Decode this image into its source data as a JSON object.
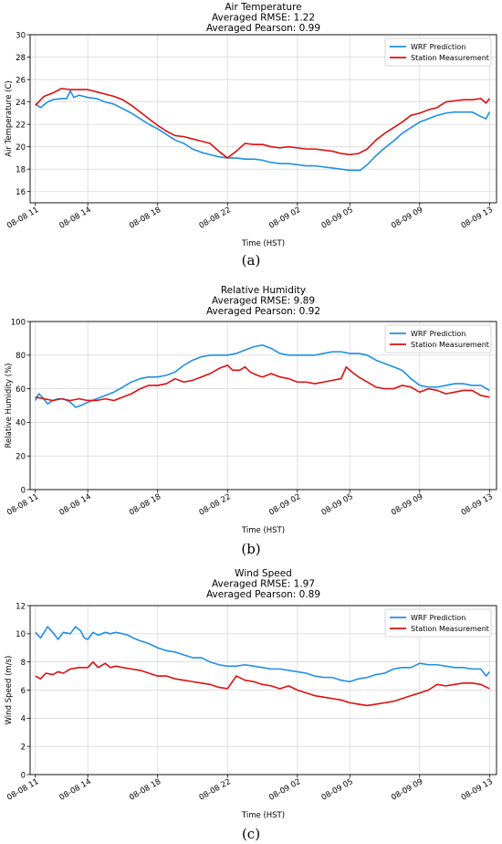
{
  "chart_data": [
    {
      "type": "line",
      "panel_label": "(a)",
      "title": [
        "Air Temperature",
        "Averaged RMSE: 1.22",
        "Averaged Pearson: 0.99"
      ],
      "xlabel": "Time (HST)",
      "ylabel": "Air Temperature (C)",
      "ylim": [
        15,
        30
      ],
      "yticks": [
        16,
        18,
        20,
        22,
        24,
        26,
        28,
        30
      ],
      "xlim": [
        -0.3,
        26.4
      ],
      "xticks": [
        0,
        3,
        7,
        11,
        15,
        18,
        22,
        26
      ],
      "xticklabels": [
        "08-08 11",
        "08-08 14",
        "08-08 18",
        "08-08 22",
        "08-09 02",
        "08-09 05",
        "08-09 09",
        "08-09 13"
      ],
      "grid": true,
      "legend": "top-right",
      "series": [
        {
          "name": "WRF Prediction",
          "color": "#1f8fe5",
          "x": [
            0,
            0.3,
            0.7,
            1.0,
            1.5,
            1.8,
            2.0,
            2.2,
            2.5,
            3.0,
            3.5,
            4.0,
            4.5,
            5.0,
            5.5,
            6.0,
            6.5,
            7.0,
            7.5,
            8.0,
            8.5,
            9.0,
            9.5,
            10.0,
            10.5,
            11.0,
            11.5,
            12.0,
            12.5,
            13.0,
            13.5,
            14.0,
            14.5,
            15.0,
            15.5,
            16.0,
            16.5,
            17.0,
            17.5,
            18.0,
            18.3,
            18.6,
            19.0,
            19.5,
            20.0,
            20.5,
            21.0,
            21.5,
            22.0,
            22.5,
            23.0,
            23.5,
            24.0,
            24.5,
            25.0,
            25.5,
            25.8,
            26.0
          ],
          "y": [
            23.8,
            23.5,
            24.0,
            24.2,
            24.3,
            24.3,
            25.0,
            24.4,
            24.6,
            24.4,
            24.3,
            24.0,
            23.8,
            23.4,
            23.0,
            22.5,
            22.0,
            21.6,
            21.1,
            20.6,
            20.3,
            19.8,
            19.5,
            19.3,
            19.1,
            19.0,
            19.0,
            18.9,
            18.9,
            18.8,
            18.6,
            18.5,
            18.5,
            18.4,
            18.3,
            18.3,
            18.2,
            18.1,
            18.0,
            17.9,
            17.9,
            17.9,
            18.4,
            19.2,
            19.9,
            20.5,
            21.2,
            21.7,
            22.2,
            22.5,
            22.8,
            23.0,
            23.1,
            23.1,
            23.1,
            22.7,
            22.5,
            23.1
          ]
        },
        {
          "name": "Station Measurement",
          "color": "#dd0f0f",
          "x": [
            0,
            0.5,
            1.0,
            1.5,
            2.0,
            2.5,
            3.0,
            3.5,
            4.0,
            4.5,
            5.0,
            5.5,
            6.0,
            6.5,
            7.0,
            7.5,
            8.0,
            8.5,
            9.0,
            9.5,
            10.0,
            10.5,
            11.0,
            11.5,
            12.0,
            12.5,
            13.0,
            13.5,
            14.0,
            14.5,
            15.0,
            15.5,
            16.0,
            16.5,
            17.0,
            17.5,
            18.0,
            18.5,
            19.0,
            19.5,
            20.0,
            20.5,
            21.0,
            21.5,
            22.0,
            22.5,
            23.0,
            23.5,
            24.0,
            24.5,
            25.0,
            25.5,
            25.8,
            26.0
          ],
          "y": [
            23.7,
            24.5,
            24.8,
            25.2,
            25.1,
            25.1,
            25.1,
            24.9,
            24.7,
            24.5,
            24.2,
            23.7,
            23.1,
            22.5,
            21.9,
            21.4,
            21.0,
            20.9,
            20.7,
            20.5,
            20.3,
            19.6,
            19.0,
            19.6,
            20.3,
            20.2,
            20.2,
            20.0,
            19.9,
            20.0,
            19.9,
            19.8,
            19.8,
            19.7,
            19.6,
            19.4,
            19.3,
            19.4,
            19.8,
            20.6,
            21.2,
            21.7,
            22.2,
            22.8,
            23.0,
            23.3,
            23.5,
            24.0,
            24.1,
            24.2,
            24.2,
            24.3,
            23.9,
            24.3
          ]
        }
      ]
    },
    {
      "type": "line",
      "panel_label": "(b)",
      "title": [
        "Relative Humidity",
        "Averaged RMSE: 9.89",
        "Averaged Pearson: 0.92"
      ],
      "xlabel": "Time (HST)",
      "ylabel": "Relative Humidity (%)",
      "ylim": [
        0,
        100
      ],
      "yticks": [
        0,
        20,
        40,
        60,
        80,
        100
      ],
      "xlim": [
        -0.3,
        26.4
      ],
      "xticks": [
        0,
        3,
        7,
        11,
        15,
        18,
        22,
        26
      ],
      "xticklabels": [
        "08-08 11",
        "08-08 14",
        "08-08 18",
        "08-08 22",
        "08-09 02",
        "08-09 05",
        "08-09 09",
        "08-09 13"
      ],
      "grid": true,
      "legend": "top-right",
      "series": [
        {
          "name": "WRF Prediction",
          "color": "#1f8fe5",
          "x": [
            0,
            0.2,
            0.4,
            0.7,
            1.0,
            1.3,
            1.6,
            2.0,
            2.3,
            2.6,
            3.0,
            3.5,
            4.0,
            4.5,
            5.0,
            5.5,
            6.0,
            6.5,
            7.0,
            7.5,
            8.0,
            8.5,
            9.0,
            9.5,
            10.0,
            10.5,
            11.0,
            11.5,
            12.0,
            12.5,
            13.0,
            13.5,
            14.0,
            14.5,
            15.0,
            15.5,
            16.0,
            16.5,
            17.0,
            17.5,
            18.0,
            18.5,
            19.0,
            19.5,
            20.0,
            20.5,
            21.0,
            21.5,
            22.0,
            22.5,
            23.0,
            23.5,
            24.0,
            24.5,
            25.0,
            25.5,
            26.0
          ],
          "y": [
            53,
            57,
            55,
            51,
            53,
            54,
            54,
            52,
            49,
            50,
            52,
            54,
            56,
            58,
            61,
            64,
            66,
            67,
            67,
            68,
            70,
            74,
            77,
            79,
            80,
            80,
            80,
            81,
            83,
            85,
            86,
            84,
            81,
            80,
            80,
            80,
            80,
            81,
            82,
            82,
            81,
            81,
            80,
            77,
            75,
            73,
            71,
            66,
            62,
            61,
            61,
            62,
            63,
            63,
            62,
            62,
            59
          ]
        },
        {
          "name": "Station Measurement",
          "color": "#dd0f0f",
          "x": [
            0,
            0.5,
            1.0,
            1.5,
            2.0,
            2.5,
            3.0,
            3.5,
            4.0,
            4.5,
            5.0,
            5.5,
            6.0,
            6.5,
            7.0,
            7.5,
            8.0,
            8.5,
            9.0,
            9.5,
            10.0,
            10.5,
            11.0,
            11.3,
            11.7,
            12.0,
            12.3,
            12.7,
            13.0,
            13.5,
            14.0,
            14.5,
            15.0,
            15.5,
            16.0,
            16.5,
            17.0,
            17.5,
            17.8,
            18.0,
            18.5,
            19.0,
            19.5,
            20.0,
            20.5,
            21.0,
            21.5,
            22.0,
            22.5,
            23.0,
            23.5,
            24.0,
            24.5,
            25.0,
            25.5,
            26.0
          ],
          "y": [
            55,
            54,
            53,
            54,
            53,
            54,
            53,
            53,
            54,
            53,
            55,
            57,
            60,
            62,
            62,
            63,
            66,
            64,
            65,
            67,
            69,
            72,
            74,
            71,
            71,
            73,
            70,
            68,
            67,
            69,
            67,
            66,
            64,
            64,
            63,
            64,
            65,
            66,
            73,
            71,
            67,
            64,
            61,
            60,
            60,
            62,
            61,
            58,
            60,
            59,
            57,
            58,
            59,
            59,
            56,
            55
          ]
        }
      ]
    },
    {
      "type": "line",
      "panel_label": "(c)",
      "title": [
        "Wind Speed",
        "Averaged RMSE: 1.97",
        "Averaged Pearson: 0.89"
      ],
      "xlabel": "Time (HST)",
      "ylabel": "Wind Speed (m/s)",
      "ylim": [
        0,
        12
      ],
      "yticks": [
        0,
        2,
        4,
        6,
        8,
        10,
        12
      ],
      "xlim": [
        -0.3,
        26.4
      ],
      "xticks": [
        0,
        3,
        7,
        11,
        15,
        18,
        22,
        26
      ],
      "xticklabels": [
        "08-08 11",
        "08-08 14",
        "08-08 18",
        "08-08 22",
        "08-09 02",
        "08-09 05",
        "08-09 09",
        "08-09 13"
      ],
      "grid": true,
      "legend": "top-right",
      "series": [
        {
          "name": "WRF Prediction",
          "color": "#1f8fe5",
          "x": [
            0,
            0.3,
            0.7,
            1.0,
            1.3,
            1.6,
            2.0,
            2.3,
            2.6,
            2.8,
            3.0,
            3.3,
            3.6,
            4.0,
            4.3,
            4.6,
            5.0,
            5.3,
            5.6,
            6.0,
            6.5,
            7.0,
            7.5,
            8.0,
            8.5,
            9.0,
            9.5,
            10.0,
            10.5,
            11.0,
            11.5,
            12.0,
            12.5,
            13.0,
            13.5,
            14.0,
            14.5,
            15.0,
            15.5,
            16.0,
            16.5,
            17.0,
            17.5,
            18.0,
            18.5,
            19.0,
            19.5,
            20.0,
            20.5,
            21.0,
            21.5,
            22.0,
            22.5,
            23.0,
            23.5,
            24.0,
            24.5,
            25.0,
            25.5,
            25.8,
            26.0
          ],
          "y": [
            10.1,
            9.7,
            10.5,
            10.1,
            9.6,
            10.1,
            10.0,
            10.5,
            10.2,
            9.7,
            9.6,
            10.1,
            9.9,
            10.1,
            10.0,
            10.1,
            10.0,
            9.9,
            9.7,
            9.5,
            9.3,
            9.0,
            8.8,
            8.7,
            8.5,
            8.3,
            8.3,
            8.0,
            7.8,
            7.7,
            7.7,
            7.8,
            7.7,
            7.6,
            7.5,
            7.5,
            7.4,
            7.3,
            7.2,
            7.0,
            6.9,
            6.9,
            6.7,
            6.6,
            6.8,
            6.9,
            7.1,
            7.2,
            7.5,
            7.6,
            7.6,
            7.9,
            7.8,
            7.8,
            7.7,
            7.6,
            7.6,
            7.5,
            7.5,
            7.0,
            7.3
          ]
        },
        {
          "name": "Station Measurement",
          "color": "#dd0f0f",
          "x": [
            0,
            0.3,
            0.6,
            1.0,
            1.3,
            1.6,
            2.0,
            2.5,
            3.0,
            3.3,
            3.6,
            4.0,
            4.3,
            4.6,
            5.0,
            5.5,
            6.0,
            6.5,
            7.0,
            7.5,
            8.0,
            8.5,
            9.0,
            9.5,
            10.0,
            10.5,
            11.0,
            11.5,
            12.0,
            12.5,
            13.0,
            13.5,
            14.0,
            14.5,
            15.0,
            15.5,
            16.0,
            16.5,
            17.0,
            17.5,
            18.0,
            18.5,
            19.0,
            19.5,
            20.0,
            20.5,
            21.0,
            21.5,
            22.0,
            22.5,
            23.0,
            23.5,
            24.0,
            24.5,
            25.0,
            25.5,
            26.0
          ],
          "y": [
            7.0,
            6.8,
            7.2,
            7.1,
            7.3,
            7.2,
            7.5,
            7.6,
            7.6,
            8.0,
            7.6,
            7.9,
            7.6,
            7.7,
            7.6,
            7.5,
            7.4,
            7.2,
            7.0,
            7.0,
            6.8,
            6.7,
            6.6,
            6.5,
            6.4,
            6.2,
            6.1,
            7.0,
            6.7,
            6.6,
            6.4,
            6.3,
            6.1,
            6.3,
            6.0,
            5.8,
            5.6,
            5.5,
            5.4,
            5.3,
            5.1,
            5.0,
            4.9,
            5.0,
            5.1,
            5.2,
            5.4,
            5.6,
            5.8,
            6.0,
            6.4,
            6.3,
            6.4,
            6.5,
            6.5,
            6.4,
            6.1
          ]
        }
      ]
    }
  ]
}
